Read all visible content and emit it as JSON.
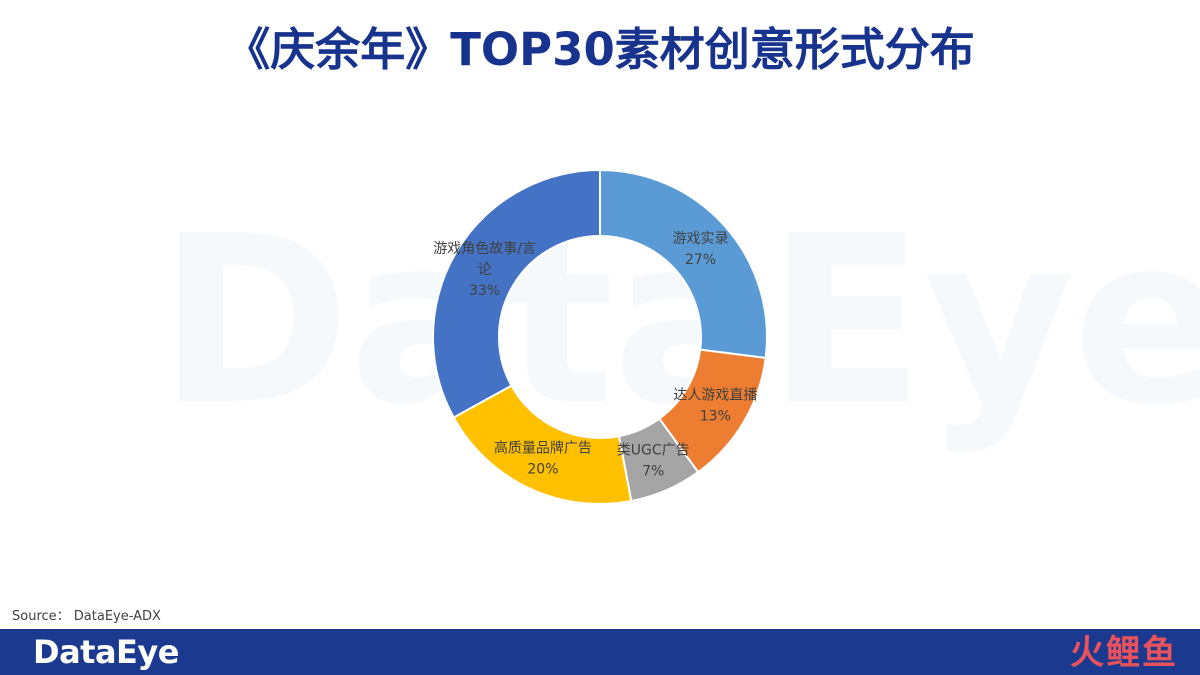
{
  "title": "《庆余年》TOP30素材创意形式分布",
  "watermark": "DataEye",
  "source": "Source：  DataEye-ADX",
  "footer": {
    "logo": "DataEye",
    "partner_logo": "火鲤鱼"
  },
  "colors": {
    "title": "#18338e",
    "footer_bar": "#1b3a8f",
    "partner_logo": "#e8525c",
    "watermark": "#2f7fd0"
  },
  "chart_data": {
    "type": "pie",
    "style": "donut",
    "start": "12 o'clock, clockwise",
    "slices": [
      {
        "label_lines": [
          "游戏实录"
        ],
        "percent_label": "27%",
        "value": 27,
        "color": "#5b9bd5"
      },
      {
        "label_lines": [
          "达人游戏直播"
        ],
        "percent_label": "13%",
        "value": 13,
        "color": "#ed7d31"
      },
      {
        "label_lines": [
          "类UGC广告"
        ],
        "percent_label": "7%",
        "value": 7,
        "color": "#a5a5a5"
      },
      {
        "label_lines": [
          "高质量品牌广告"
        ],
        "percent_label": "20%",
        "value": 20,
        "color": "#ffc000"
      },
      {
        "label_lines": [
          "游戏角色故事/言",
          "论"
        ],
        "percent_label": "33%",
        "value": 33,
        "color": "#4472c4"
      }
    ]
  }
}
